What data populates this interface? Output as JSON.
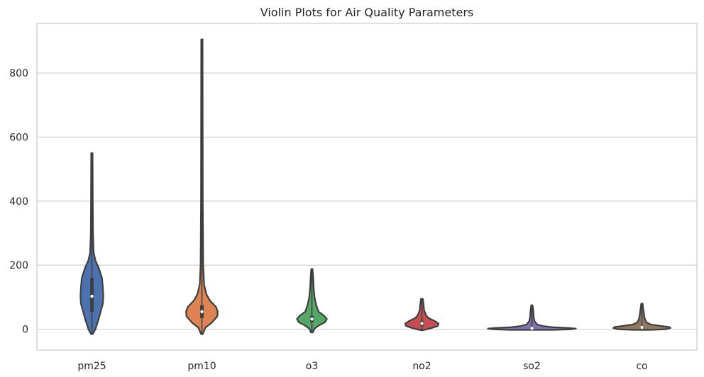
{
  "chart_data": {
    "type": "violin",
    "title": "Violin Plots for Air Quality Parameters",
    "xlabel": "",
    "ylabel": "",
    "categories": [
      "pm25",
      "pm10",
      "o3",
      "no2",
      "so2",
      "co"
    ],
    "ylim": [
      -65,
      955
    ],
    "yticks": [
      0,
      200,
      400,
      600,
      800
    ],
    "grid": "horizontal",
    "series": [
      {
        "category": "pm25",
        "color": "#4c72b0",
        "min": -15,
        "max": 550,
        "q1": 55,
        "median": 103,
        "q3": 160,
        "profile": [
          [
            -15,
            0.02
          ],
          [
            0,
            0.08
          ],
          [
            30,
            0.15
          ],
          [
            55,
            0.2
          ],
          [
            80,
            0.25
          ],
          [
            103,
            0.26
          ],
          [
            130,
            0.25
          ],
          [
            160,
            0.23
          ],
          [
            190,
            0.16
          ],
          [
            215,
            0.08
          ],
          [
            240,
            0.04
          ],
          [
            300,
            0.025
          ],
          [
            400,
            0.02
          ],
          [
            550,
            0.015
          ]
        ]
      },
      {
        "category": "pm10",
        "color": "#dd8452",
        "min": -15,
        "max": 905,
        "q1": 35,
        "median": 55,
        "q3": 75,
        "profile": [
          [
            -15,
            0.02
          ],
          [
            5,
            0.08
          ],
          [
            20,
            0.22
          ],
          [
            40,
            0.35
          ],
          [
            55,
            0.36
          ],
          [
            70,
            0.32
          ],
          [
            90,
            0.18
          ],
          [
            110,
            0.1
          ],
          [
            140,
            0.05
          ],
          [
            200,
            0.03
          ],
          [
            400,
            0.02
          ],
          [
            905,
            0.015
          ]
        ]
      },
      {
        "category": "o3",
        "color": "#55a868",
        "min": -10,
        "max": 188,
        "q1": 22,
        "median": 32,
        "q3": 42,
        "profile": [
          [
            -10,
            0.02
          ],
          [
            2,
            0.06
          ],
          [
            12,
            0.16
          ],
          [
            22,
            0.3
          ],
          [
            32,
            0.34
          ],
          [
            42,
            0.28
          ],
          [
            55,
            0.15
          ],
          [
            75,
            0.1
          ],
          [
            100,
            0.06
          ],
          [
            130,
            0.04
          ],
          [
            160,
            0.03
          ],
          [
            188,
            0.015
          ]
        ]
      },
      {
        "category": "no2",
        "color": "#c44e52",
        "min": -3,
        "max": 95,
        "q1": 10,
        "median": 18,
        "q3": 25,
        "profile": [
          [
            -3,
            0.03
          ],
          [
            3,
            0.2
          ],
          [
            10,
            0.36
          ],
          [
            18,
            0.38
          ],
          [
            25,
            0.3
          ],
          [
            35,
            0.15
          ],
          [
            45,
            0.09
          ],
          [
            60,
            0.05
          ],
          [
            75,
            0.04
          ],
          [
            95,
            0.02
          ]
        ]
      },
      {
        "category": "so2",
        "color": "#8172b3",
        "min": -2,
        "max": 75,
        "q1": 1,
        "median": 3,
        "q3": 6,
        "profile": [
          [
            -2,
            0.5
          ],
          [
            0,
            0.9
          ],
          [
            2,
            1.0
          ],
          [
            4,
            0.85
          ],
          [
            6,
            0.5
          ],
          [
            10,
            0.25
          ],
          [
            15,
            0.12
          ],
          [
            25,
            0.06
          ],
          [
            40,
            0.04
          ],
          [
            60,
            0.03
          ],
          [
            75,
            0.015
          ]
        ]
      },
      {
        "category": "co",
        "color": "#937860",
        "min": -2,
        "max": 80,
        "q1": 3,
        "median": 6,
        "q3": 9,
        "profile": [
          [
            -2,
            0.2
          ],
          [
            0,
            0.55
          ],
          [
            4,
            0.65
          ],
          [
            7,
            0.62
          ],
          [
            10,
            0.45
          ],
          [
            15,
            0.2
          ],
          [
            22,
            0.1
          ],
          [
            35,
            0.06
          ],
          [
            55,
            0.04
          ],
          [
            80,
            0.015
          ]
        ]
      }
    ]
  }
}
